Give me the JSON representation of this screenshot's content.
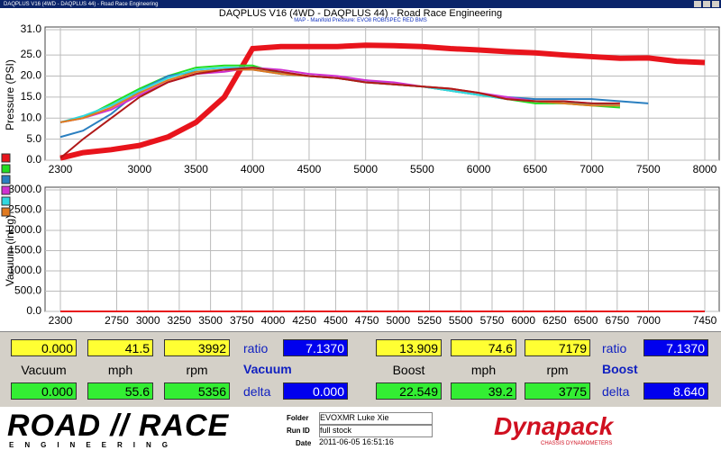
{
  "window_title": "DAQPLUS V16 (4WD - DAQPLUS 44) - Road Race Engineering",
  "chart_data": [
    {
      "type": "line",
      "title": "DAQPLUS V16 (4WD - DAQPLUS 44) - Road Race Engineering",
      "subtitle": "MAP - Manifold Pressure: EVO8 ROBISPEC RED BMS",
      "y_label": "Pressure (PSI)",
      "grid": true,
      "xlim": [
        2300,
        8000
      ],
      "xticks": [
        2300,
        3000,
        3500,
        4000,
        4500,
        5000,
        5500,
        6000,
        6500,
        7000,
        7500,
        8000
      ],
      "ylim": [
        0,
        31
      ],
      "yticks": [
        {
          "value": 0,
          "label": "0.0"
        },
        {
          "value": 5,
          "label": "5.0"
        },
        {
          "value": 10,
          "label": "10.0"
        },
        {
          "value": 15,
          "label": "15.0"
        },
        {
          "value": 20,
          "label": "20.0"
        },
        {
          "value": 25,
          "label": "25.0"
        },
        {
          "value": 31,
          "label": "31.0"
        }
      ],
      "x": [
        2300,
        2500,
        2750,
        3000,
        3250,
        3500,
        3750,
        4000,
        4250,
        4500,
        4750,
        5000,
        5250,
        5500,
        5750,
        6000,
        6250,
        6500,
        6750,
        7000,
        7250,
        7500,
        7750,
        8000
      ],
      "series": [
        {
          "color": "#e8141c",
          "values": [
            0.5,
            1.8,
            2.5,
            3.5,
            5.5,
            9,
            15,
            26.5,
            27,
            27,
            27,
            27.3,
            27.2,
            27,
            26.5,
            26.2,
            25.8,
            25.5,
            25,
            24.6,
            24.2,
            24.3,
            23.5,
            23.2
          ]
        },
        {
          "color": "#22dd22",
          "values": [
            9,
            10,
            13.5,
            17,
            20,
            22,
            22.5,
            22.5,
            20.5,
            20,
            19.5,
            18.5,
            18,
            17.5,
            16.5,
            15.5,
            14.5,
            13.5,
            13.5,
            13,
            12.5,
            null,
            null,
            null
          ]
        },
        {
          "color": "#2a7fc0",
          "values": [
            5.5,
            7,
            11,
            16.5,
            20,
            21,
            21.5,
            21.5,
            20.5,
            20,
            19.5,
            19,
            18,
            17.5,
            16.5,
            15.5,
            15,
            14.5,
            14.5,
            14.5,
            14,
            13.5,
            null,
            null
          ]
        },
        {
          "color": "#d030d0",
          "values": [
            9,
            10,
            12,
            15.5,
            18.5,
            20.5,
            21,
            22,
            21.5,
            20.5,
            20,
            19,
            18.5,
            17.5,
            17,
            16,
            15,
            14,
            14,
            13.5,
            13,
            null,
            null,
            null
          ]
        },
        {
          "color": "#30d8e0",
          "values": [
            9,
            10.5,
            13,
            16.5,
            19.5,
            21.5,
            22,
            22,
            21,
            20,
            19.5,
            18.5,
            18,
            17.5,
            16.5,
            15.5,
            14.5,
            14,
            13.5,
            13.5,
            13,
            null,
            null,
            null
          ]
        },
        {
          "color": "#e07a20",
          "values": [
            9,
            10,
            12.5,
            16,
            19,
            21,
            21.5,
            21.5,
            20.5,
            20,
            19.5,
            18.5,
            18,
            17.5,
            17,
            16,
            14.5,
            14,
            13.5,
            13,
            13,
            null,
            null,
            null
          ]
        },
        {
          "color": "#b01818",
          "values": [
            0.5,
            5,
            10,
            15,
            18.5,
            20.5,
            21.5,
            22,
            21,
            20,
            19.5,
            18.5,
            18,
            17.5,
            17,
            16,
            14.5,
            14,
            14,
            13.5,
            13.5,
            null,
            null,
            null
          ]
        }
      ]
    },
    {
      "type": "line",
      "y_label": "Vacuum (inHg)",
      "grid": true,
      "xlim": [
        2300,
        7450
      ],
      "xticks": [
        2300,
        2750,
        3000,
        3250,
        3500,
        3750,
        4000,
        4250,
        4500,
        4750,
        5000,
        5250,
        5500,
        5750,
        6000,
        6250,
        6500,
        6750,
        7000,
        7450
      ],
      "ylim": [
        0,
        3000
      ],
      "yticks": [
        {
          "value": 0,
          "label": "0.0"
        },
        {
          "value": 500,
          "label": "500.0"
        },
        {
          "value": 1000,
          "label": "1000.0"
        },
        {
          "value": 1500,
          "label": "1500.0"
        },
        {
          "value": 2000,
          "label": "2000.0"
        },
        {
          "value": 2500,
          "label": "2500.0"
        },
        {
          "value": 3000,
          "label": "3000.0"
        }
      ],
      "x": [
        2300,
        7450
      ],
      "series": [
        {
          "color": "#e8141c",
          "values": [
            0,
            0
          ]
        }
      ]
    }
  ],
  "panels": [
    {
      "top_values": [
        "0.000",
        "41.5",
        "3992"
      ],
      "labels": [
        "Vacuum",
        "mph",
        "rpm"
      ],
      "bottom_values": [
        "0.000",
        "55.6",
        "5356"
      ],
      "ratio_label": "ratio",
      "ratio": "7.1370",
      "heading": "Vacuum",
      "delta_label": "delta",
      "delta": "0.000"
    },
    {
      "top_values": [
        "13.909",
        "74.6",
        "7179"
      ],
      "labels": [
        "Boost",
        "mph",
        "rpm"
      ],
      "bottom_values": [
        "22.549",
        "39.2",
        "3775"
      ],
      "ratio_label": "ratio",
      "ratio": "7.1370",
      "heading": "Boost",
      "delta_label": "delta",
      "delta": "8.640"
    }
  ],
  "footer": {
    "logo_main": "ROAD // RACE",
    "logo_sub": "ENGINEERING",
    "folder_label": "Folder",
    "folder": "EVOXMR Luke Xie",
    "run_label": "Run ID",
    "run": "full stock",
    "date_label": "Date",
    "date": "2011-06-05 16:51:16",
    "brand": "Dynapack",
    "brand_sub": "CHASSIS DYNAMOMETERS"
  }
}
